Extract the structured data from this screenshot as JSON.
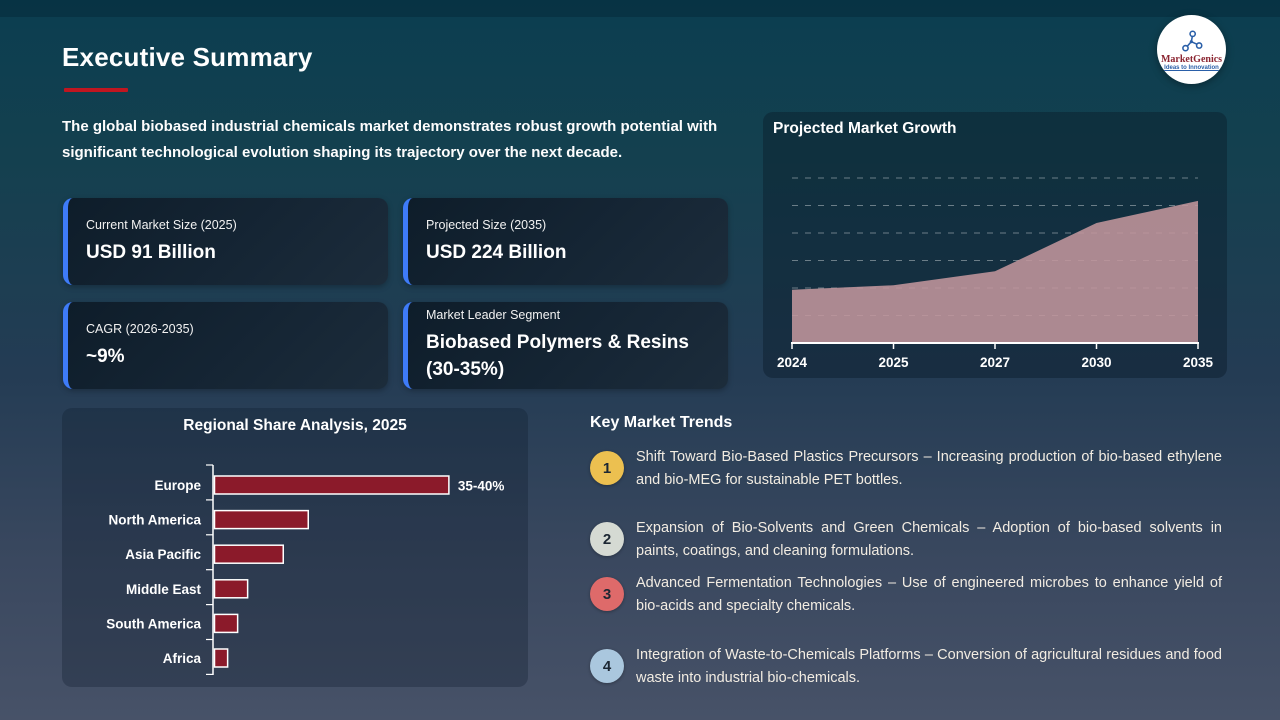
{
  "slide": {
    "title": "Executive Summary",
    "intro": "The global biobased industrial chemicals market demonstrates robust growth potential with significant technological evolution shaping its trajectory over the next decade."
  },
  "logo": {
    "name": "MarketGenics",
    "tagline": "Ideas to Innovation"
  },
  "stats": [
    {
      "label": "Current Market Size (2025)",
      "value": "USD 91 Billion"
    },
    {
      "label": "Projected Size (2035)",
      "value": "USD 224 Billion"
    },
    {
      "label": "CAGR (2026-2035)",
      "value": "~9%"
    },
    {
      "label": "Market Leader Segment",
      "value": "Biobased Polymers & Resins (30-35%)"
    }
  ],
  "trends": {
    "heading": "Key Market Trends",
    "items": [
      {
        "number": "1",
        "color": "#ecc050",
        "text": "Shift Toward Bio-Based Plastics Precursors – Increasing production of bio-based ethylene and bio-MEG for sustainable PET bottles."
      },
      {
        "number": "2",
        "color": "#d5dad3",
        "text": "Expansion of Bio-Solvents and Green Chemicals – Adoption of bio-based solvents in paints, coatings, and cleaning formulations."
      },
      {
        "number": "3",
        "color": "#de6a6a",
        "text": "Advanced Fermentation Technologies – Use of engineered microbes to enhance yield of bio-acids and specialty chemicals."
      },
      {
        "number": "4",
        "color": "#aac7de",
        "text": "Integration of Waste-to-Chemicals Platforms – Conversion of agricultural residues and food waste into industrial bio-chemicals."
      }
    ]
  },
  "chart_data": [
    {
      "type": "area",
      "title": "Projected Market Growth",
      "x": [
        "2024",
        "2025",
        "2027",
        "2030",
        "2035"
      ],
      "values": [
        84,
        91,
        113,
        189,
        224
      ],
      "unit": "USD Billion",
      "ylim": [
        0,
        260
      ],
      "grid": "horizontal-dashed",
      "fill_color": "#c2969c",
      "axis_color": "#ffffff"
    },
    {
      "type": "bar",
      "title": "Regional Share Analysis, 2025",
      "orientation": "horizontal",
      "categories": [
        "Europe",
        "North America",
        "Asia Pacific",
        "Middle East",
        "South America",
        "Africa"
      ],
      "values": [
        37.5,
        15,
        11,
        5.3,
        3.7,
        2.1
      ],
      "unit": "%",
      "xlim": [
        0,
        40
      ],
      "data_labels": [
        "35-40%",
        "",
        "",
        "",
        "",
        ""
      ],
      "bar_color": "#8b1a2a",
      "bar_border_color": "#ffffff",
      "axis_color": "#ffffff"
    }
  ]
}
